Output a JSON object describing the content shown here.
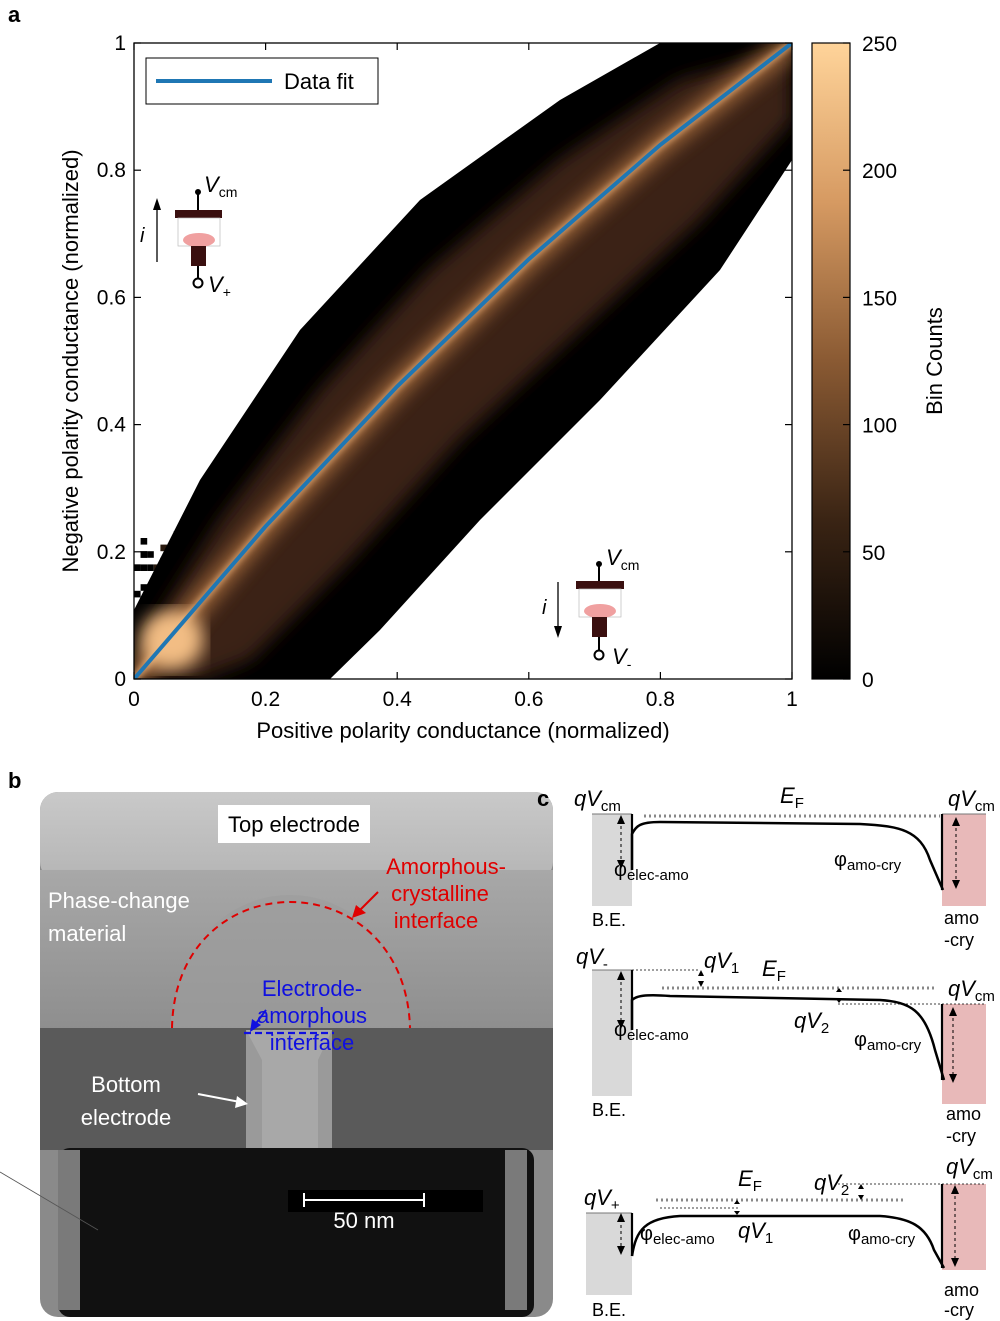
{
  "panels": {
    "a": "a",
    "b": "b",
    "c": "c"
  },
  "chart_data": {
    "type": "heatmap",
    "title": "",
    "xlabel": "Positive polarity conductance (normalized)",
    "ylabel": "Negative polarity conductance (normalized)",
    "xlim": [
      0,
      1
    ],
    "ylim": [
      0,
      1
    ],
    "xticks": [
      "0",
      "0.2",
      "0.4",
      "0.6",
      "0.8",
      "1"
    ],
    "yticks": [
      "0",
      "0.2",
      "0.4",
      "0.6",
      "0.8",
      "1"
    ],
    "colorbar": {
      "label": "Bin Counts",
      "range": [
        0,
        250
      ],
      "ticks": [
        "0",
        "50",
        "100",
        "150",
        "200",
        "250"
      ]
    },
    "legend": {
      "placement": "top-left",
      "entries": [
        "Data fit"
      ]
    },
    "fit_curve": {
      "name": "Data fit",
      "color": "#1f77b4",
      "x": [
        0,
        0.1,
        0.2,
        0.3,
        0.4,
        0.5,
        0.6,
        0.7,
        0.8,
        0.9,
        1.0
      ],
      "y": [
        0,
        0.12,
        0.24,
        0.35,
        0.46,
        0.56,
        0.66,
        0.75,
        0.84,
        0.92,
        1.0
      ]
    },
    "insets": [
      {
        "top_label": "V",
        "top_sub": "cm",
        "bottom_label": "V",
        "bottom_sub": "+",
        "current": "i",
        "direction": "up"
      },
      {
        "top_label": "V",
        "top_sub": "cm",
        "bottom_label": "V",
        "bottom_sub": "-",
        "current": "i",
        "direction": "down"
      }
    ]
  },
  "tem": {
    "top_electrode": "Top electrode",
    "phase_change_1": "Phase-change",
    "phase_change_2": "material",
    "amorphous_1": "Amorphous-",
    "amorphous_2": "crystalline",
    "amorphous_3": "interface",
    "electrode_1": "Electrode-",
    "electrode_2": "amorphous",
    "electrode_3": "interface",
    "bottom_1": "Bottom",
    "bottom_2": "electrode",
    "scale_bar": "50 nm",
    "colors": {
      "red": "#e00000",
      "blue": "#1010e0"
    }
  },
  "bands": {
    "d1": {
      "left": "qV",
      "left_sub": "cm",
      "ef": "E",
      "ef_sub": "F",
      "right": "qV",
      "right_sub": "cm",
      "phi_left": "φ",
      "phi_left_sub": "elec-amo",
      "phi_right": "φ",
      "phi_right_sub": "amo-cry",
      "be": "B.E.",
      "amo1": "amo",
      "amo2": "-cry"
    },
    "d2": {
      "left": "qV",
      "left_sub": "-",
      "qv1": "qV",
      "qv1_sub": "1",
      "ef": "E",
      "ef_sub": "F",
      "qv2": "qV",
      "qv2_sub": "2",
      "right": "qV",
      "right_sub": "cm",
      "phi_left": "φ",
      "phi_left_sub": "elec-amo",
      "phi_right": "φ",
      "phi_right_sub": "amo-cry",
      "be": "B.E.",
      "amo1": "amo",
      "amo2": "-cry"
    },
    "d3": {
      "left": "qV",
      "left_sub": "+",
      "ef": "E",
      "ef_sub": "F",
      "qv2": "qV",
      "qv2_sub": "2",
      "right": "qV",
      "right_sub": "cm",
      "phi_left": "φ",
      "phi_left_sub": "elec-amo",
      "qv1": "qV",
      "qv1_sub": "1",
      "phi_right": "φ",
      "phi_right_sub": "amo-cry",
      "be": "B.E.",
      "amo1": "amo",
      "amo2": "-cry"
    }
  }
}
